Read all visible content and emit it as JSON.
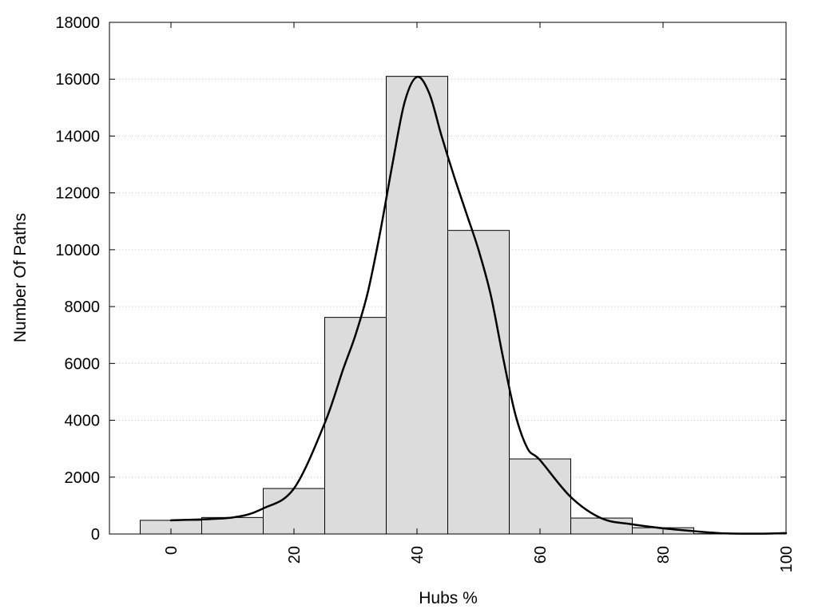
{
  "chart_data": {
    "type": "bar",
    "xlabel": "Hubs %",
    "ylabel": "Number Of Paths",
    "xlim": [
      -10,
      100
    ],
    "ylim": [
      0,
      18000
    ],
    "x_ticks": [
      0,
      20,
      40,
      60,
      80,
      100
    ],
    "y_ticks": [
      0,
      2000,
      4000,
      6000,
      8000,
      10000,
      12000,
      14000,
      16000,
      18000
    ],
    "grid": "horizontal dotted",
    "bar_width": 10,
    "bars": [
      {
        "x": 0,
        "value": 480
      },
      {
        "x": 10,
        "value": 580
      },
      {
        "x": 20,
        "value": 1600
      },
      {
        "x": 30,
        "value": 7620
      },
      {
        "x": 40,
        "value": 16100
      },
      {
        "x": 50,
        "value": 10680
      },
      {
        "x": 60,
        "value": 2640
      },
      {
        "x": 70,
        "value": 560
      },
      {
        "x": 80,
        "value": 220
      },
      {
        "x": 90,
        "value": 10
      }
    ],
    "series": [
      {
        "type": "line",
        "x": [
          0,
          10,
          15,
          20,
          25,
          28,
          30,
          32,
          34,
          36,
          38,
          40,
          42,
          44,
          46,
          48,
          50,
          52,
          54,
          56,
          58,
          60,
          65,
          70,
          75,
          80,
          85,
          90,
          95,
          100
        ],
        "values": [
          480,
          580,
          900,
          1600,
          3900,
          5800,
          7000,
          8500,
          10600,
          13000,
          15200,
          16080,
          15500,
          14000,
          12600,
          11300,
          10000,
          8400,
          6200,
          4200,
          3000,
          2600,
          1300,
          550,
          340,
          200,
          100,
          20,
          10,
          30
        ]
      }
    ],
    "colors": {
      "bar_fill": "#dcdcdc",
      "bar_stroke": "#000000",
      "curve": "#000000",
      "grid": "#c8c8c8"
    }
  }
}
